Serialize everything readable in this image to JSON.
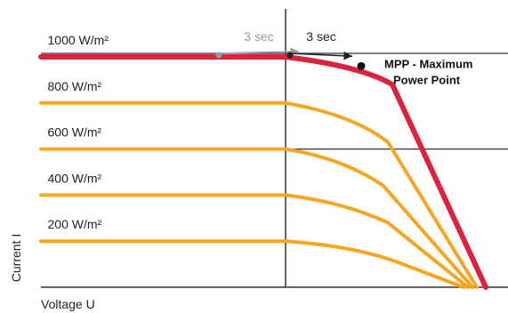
{
  "chart_data": {
    "type": "line",
    "title": "",
    "xlabel": "Voltage U",
    "ylabel": "Current I",
    "series": [
      {
        "name": "1000 W/m²",
        "color": "#d9233f",
        "width": 6,
        "points": [
          [
            0,
            100
          ],
          [
            0.55,
            100
          ],
          [
            0.72,
            96
          ],
          [
            0.79,
            88
          ],
          [
            1.0,
            0
          ]
        ]
      },
      {
        "name": "800 W/m²",
        "color": "#f5a623",
        "width": 4,
        "points": [
          [
            0,
            80
          ],
          [
            0.55,
            80
          ],
          [
            0.7,
            75
          ],
          [
            0.78,
            63
          ],
          [
            0.98,
            0
          ]
        ]
      },
      {
        "name": "600 W/m²",
        "color": "#f5a623",
        "width": 4,
        "points": [
          [
            0,
            60
          ],
          [
            0.55,
            60
          ],
          [
            0.68,
            56
          ],
          [
            0.77,
            44
          ],
          [
            0.97,
            0
          ]
        ]
      },
      {
        "name": "400 W/m²",
        "color": "#f5a623",
        "width": 4,
        "points": [
          [
            0,
            40
          ],
          [
            0.55,
            40
          ],
          [
            0.68,
            37
          ],
          [
            0.78,
            28
          ],
          [
            0.96,
            0
          ]
        ]
      },
      {
        "name": "200 W/m²",
        "color": "#f5a623",
        "width": 4,
        "points": [
          [
            0,
            20
          ],
          [
            0.55,
            20
          ],
          [
            0.7,
            18
          ],
          [
            0.8,
            11
          ],
          [
            0.95,
            0
          ]
        ]
      }
    ],
    "mpp": {
      "label_line1": "MPP - Maximum",
      "label_line2": "Power Point",
      "x": 0.72,
      "y": 96
    },
    "tracking": [
      {
        "label": "3 sec",
        "color": "#9a9a9a",
        "from": [
          0.4,
          100
        ],
        "to": [
          0.58,
          100
        ]
      },
      {
        "label": "3 sec",
        "color": "#222222",
        "from": [
          0.56,
          100
        ],
        "to": [
          0.7,
          98
        ]
      }
    ],
    "xlim": [
      0,
      1.05
    ],
    "ylim": [
      0,
      100
    ],
    "grid": true
  }
}
